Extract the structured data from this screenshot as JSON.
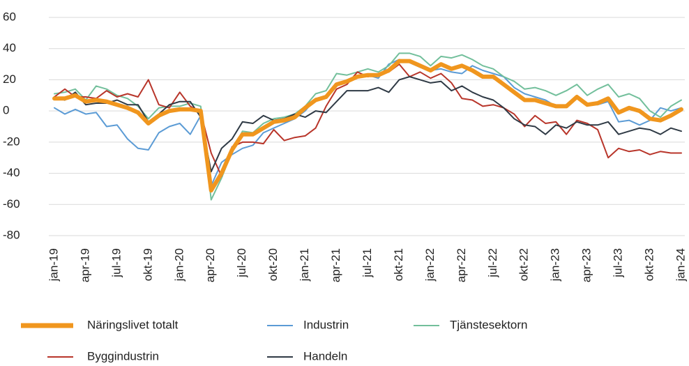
{
  "chart_data": {
    "type": "line",
    "categories": [
      "jan-19",
      null,
      null,
      "apr-19",
      null,
      null,
      "jul-19",
      null,
      null,
      "okt-19",
      null,
      null,
      "jan-20",
      null,
      null,
      "apr-20",
      null,
      null,
      "jul-20",
      null,
      null,
      "okt-20",
      null,
      null,
      "jan-21",
      null,
      null,
      "apr-21",
      null,
      null,
      "jul-21",
      null,
      null,
      "okt-21",
      null,
      null,
      "jan-22",
      null,
      null,
      "apr-22",
      null,
      null,
      "jul-22",
      null,
      null,
      "okt-22",
      null,
      null,
      "jan-23",
      null,
      null,
      "apr-23",
      null,
      null,
      "jul-23",
      null,
      null,
      "okt-23",
      null,
      null,
      "jan-24"
    ],
    "series": [
      {
        "name": "Näringslivet totalt",
        "color": "#f0961e",
        "values": [
          8,
          8,
          10,
          6,
          7,
          6,
          4,
          2,
          -1,
          -8,
          -3,
          0,
          1,
          1,
          0,
          -51,
          -40,
          -25,
          -15,
          -15,
          -11,
          -7,
          -6,
          -4,
          2,
          7,
          9,
          17,
          19,
          22,
          23,
          23,
          26,
          32,
          32,
          29,
          26,
          30,
          27,
          29,
          26,
          22,
          22,
          17,
          12,
          7,
          7,
          5,
          3,
          3,
          9,
          4,
          5,
          8,
          -1,
          2,
          0,
          -5,
          -6,
          -3,
          1
        ]
      },
      {
        "name": "Industrin",
        "color": "#5b9bd5",
        "values": [
          2,
          -2,
          1,
          -2,
          -1,
          -10,
          -9,
          -18,
          -24,
          -25,
          -14,
          -10,
          -8,
          -15,
          -3,
          -48,
          -33,
          -28,
          -24,
          -22,
          -14,
          -11,
          -8,
          -5,
          0,
          8,
          9,
          16,
          20,
          22,
          23,
          21,
          30,
          33,
          31,
          28,
          26,
          27,
          25,
          24,
          29,
          26,
          24,
          22,
          15,
          11,
          9,
          7,
          3,
          4,
          9,
          5,
          4,
          6,
          -7,
          -6,
          -9,
          -6,
          2,
          0,
          2
        ]
      },
      {
        "name": "Tjänstesektorn",
        "color": "#72bf9b",
        "values": [
          11,
          12,
          14,
          7,
          16,
          14,
          10,
          8,
          3,
          -5,
          2,
          3,
          3,
          5,
          3,
          -57,
          -43,
          -26,
          -13,
          -14,
          -8,
          -5,
          -4,
          -2,
          3,
          11,
          13,
          24,
          23,
          25,
          27,
          25,
          29,
          37,
          37,
          35,
          29,
          35,
          34,
          36,
          33,
          29,
          27,
          22,
          19,
          14,
          15,
          13,
          10,
          13,
          17,
          10,
          14,
          17,
          9,
          11,
          8,
          0,
          -4,
          3,
          7
        ]
      },
      {
        "name": "Byggindustrin",
        "color": "#b8352a",
        "values": [
          9,
          14,
          9,
          9,
          8,
          13,
          9,
          11,
          9,
          20,
          4,
          2,
          12,
          3,
          -1,
          -27,
          -42,
          -23,
          -20,
          -20,
          -21,
          -12,
          -19,
          -17,
          -16,
          -11,
          3,
          14,
          17,
          25,
          22,
          24,
          25,
          30,
          22,
          25,
          21,
          24,
          18,
          8,
          7,
          3,
          4,
          2,
          -2,
          -10,
          -3,
          -8,
          -7,
          -15,
          -6,
          -8,
          -12,
          -30,
          -24,
          -26,
          -25,
          -28,
          -26,
          -27,
          -27
        ]
      },
      {
        "name": "Handeln",
        "color": "#2f3a45",
        "values": [
          9,
          7,
          12,
          4,
          5,
          5,
          7,
          4,
          4,
          -7,
          -2,
          4,
          6,
          6,
          -4,
          -39,
          -24,
          -18,
          -7,
          -8,
          -3,
          -6,
          -5,
          -2,
          -4,
          0,
          -1,
          6,
          13,
          13,
          13,
          15,
          12,
          20,
          22,
          20,
          18,
          19,
          13,
          16,
          12,
          9,
          7,
          2,
          -5,
          -9,
          -10,
          -15,
          -9,
          -11,
          -7,
          -9,
          -9,
          -7,
          -15,
          -13,
          -11,
          -12,
          -15,
          -11,
          -13
        ]
      }
    ],
    "ylim": [
      -80,
      60
    ],
    "yticks": [
      -80,
      -60,
      -40,
      -20,
      0,
      20,
      40,
      60
    ],
    "grid": true
  }
}
